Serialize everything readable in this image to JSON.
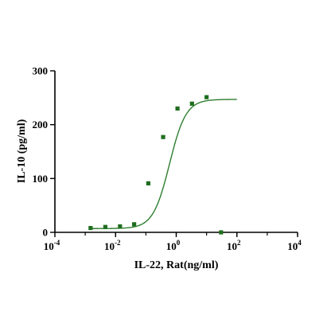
{
  "chart_data": {
    "type": "scatter",
    "title": "",
    "xlabel": "IL-22, Rat(ng/ml)",
    "ylabel": "IL-10 (pg/ml)",
    "x_scale": "log",
    "xlim": [
      0.0001,
      10000
    ],
    "ylim": [
      0,
      300
    ],
    "x_ticks": [
      {
        "value": 0.0001,
        "base": "10",
        "exp": "-4"
      },
      {
        "value": 0.01,
        "base": "10",
        "exp": "-2"
      },
      {
        "value": 1,
        "base": "10",
        "exp": "0"
      },
      {
        "value": 100,
        "base": "10",
        "exp": "2"
      },
      {
        "value": 10000,
        "base": "10",
        "exp": "4"
      }
    ],
    "y_ticks": [
      0,
      100,
      200,
      300
    ],
    "grid": false,
    "legend": "none",
    "marker_color": "#1f6e1f",
    "line_color": "#2e7d2e",
    "series": [
      {
        "x": [
          0.0015,
          0.0046,
          0.014,
          0.041,
          0.12,
          0.37,
          1.1,
          3.3,
          10,
          30
        ],
        "y": [
          8,
          10,
          11,
          15,
          91,
          177,
          230,
          239,
          251,
          0
        ]
      }
    ],
    "fit_curve": {
      "bottom": 7,
      "top": 247,
      "ec50": 0.6,
      "hill": 1.6,
      "x_range": [
        0.0015,
        100
      ]
    }
  }
}
